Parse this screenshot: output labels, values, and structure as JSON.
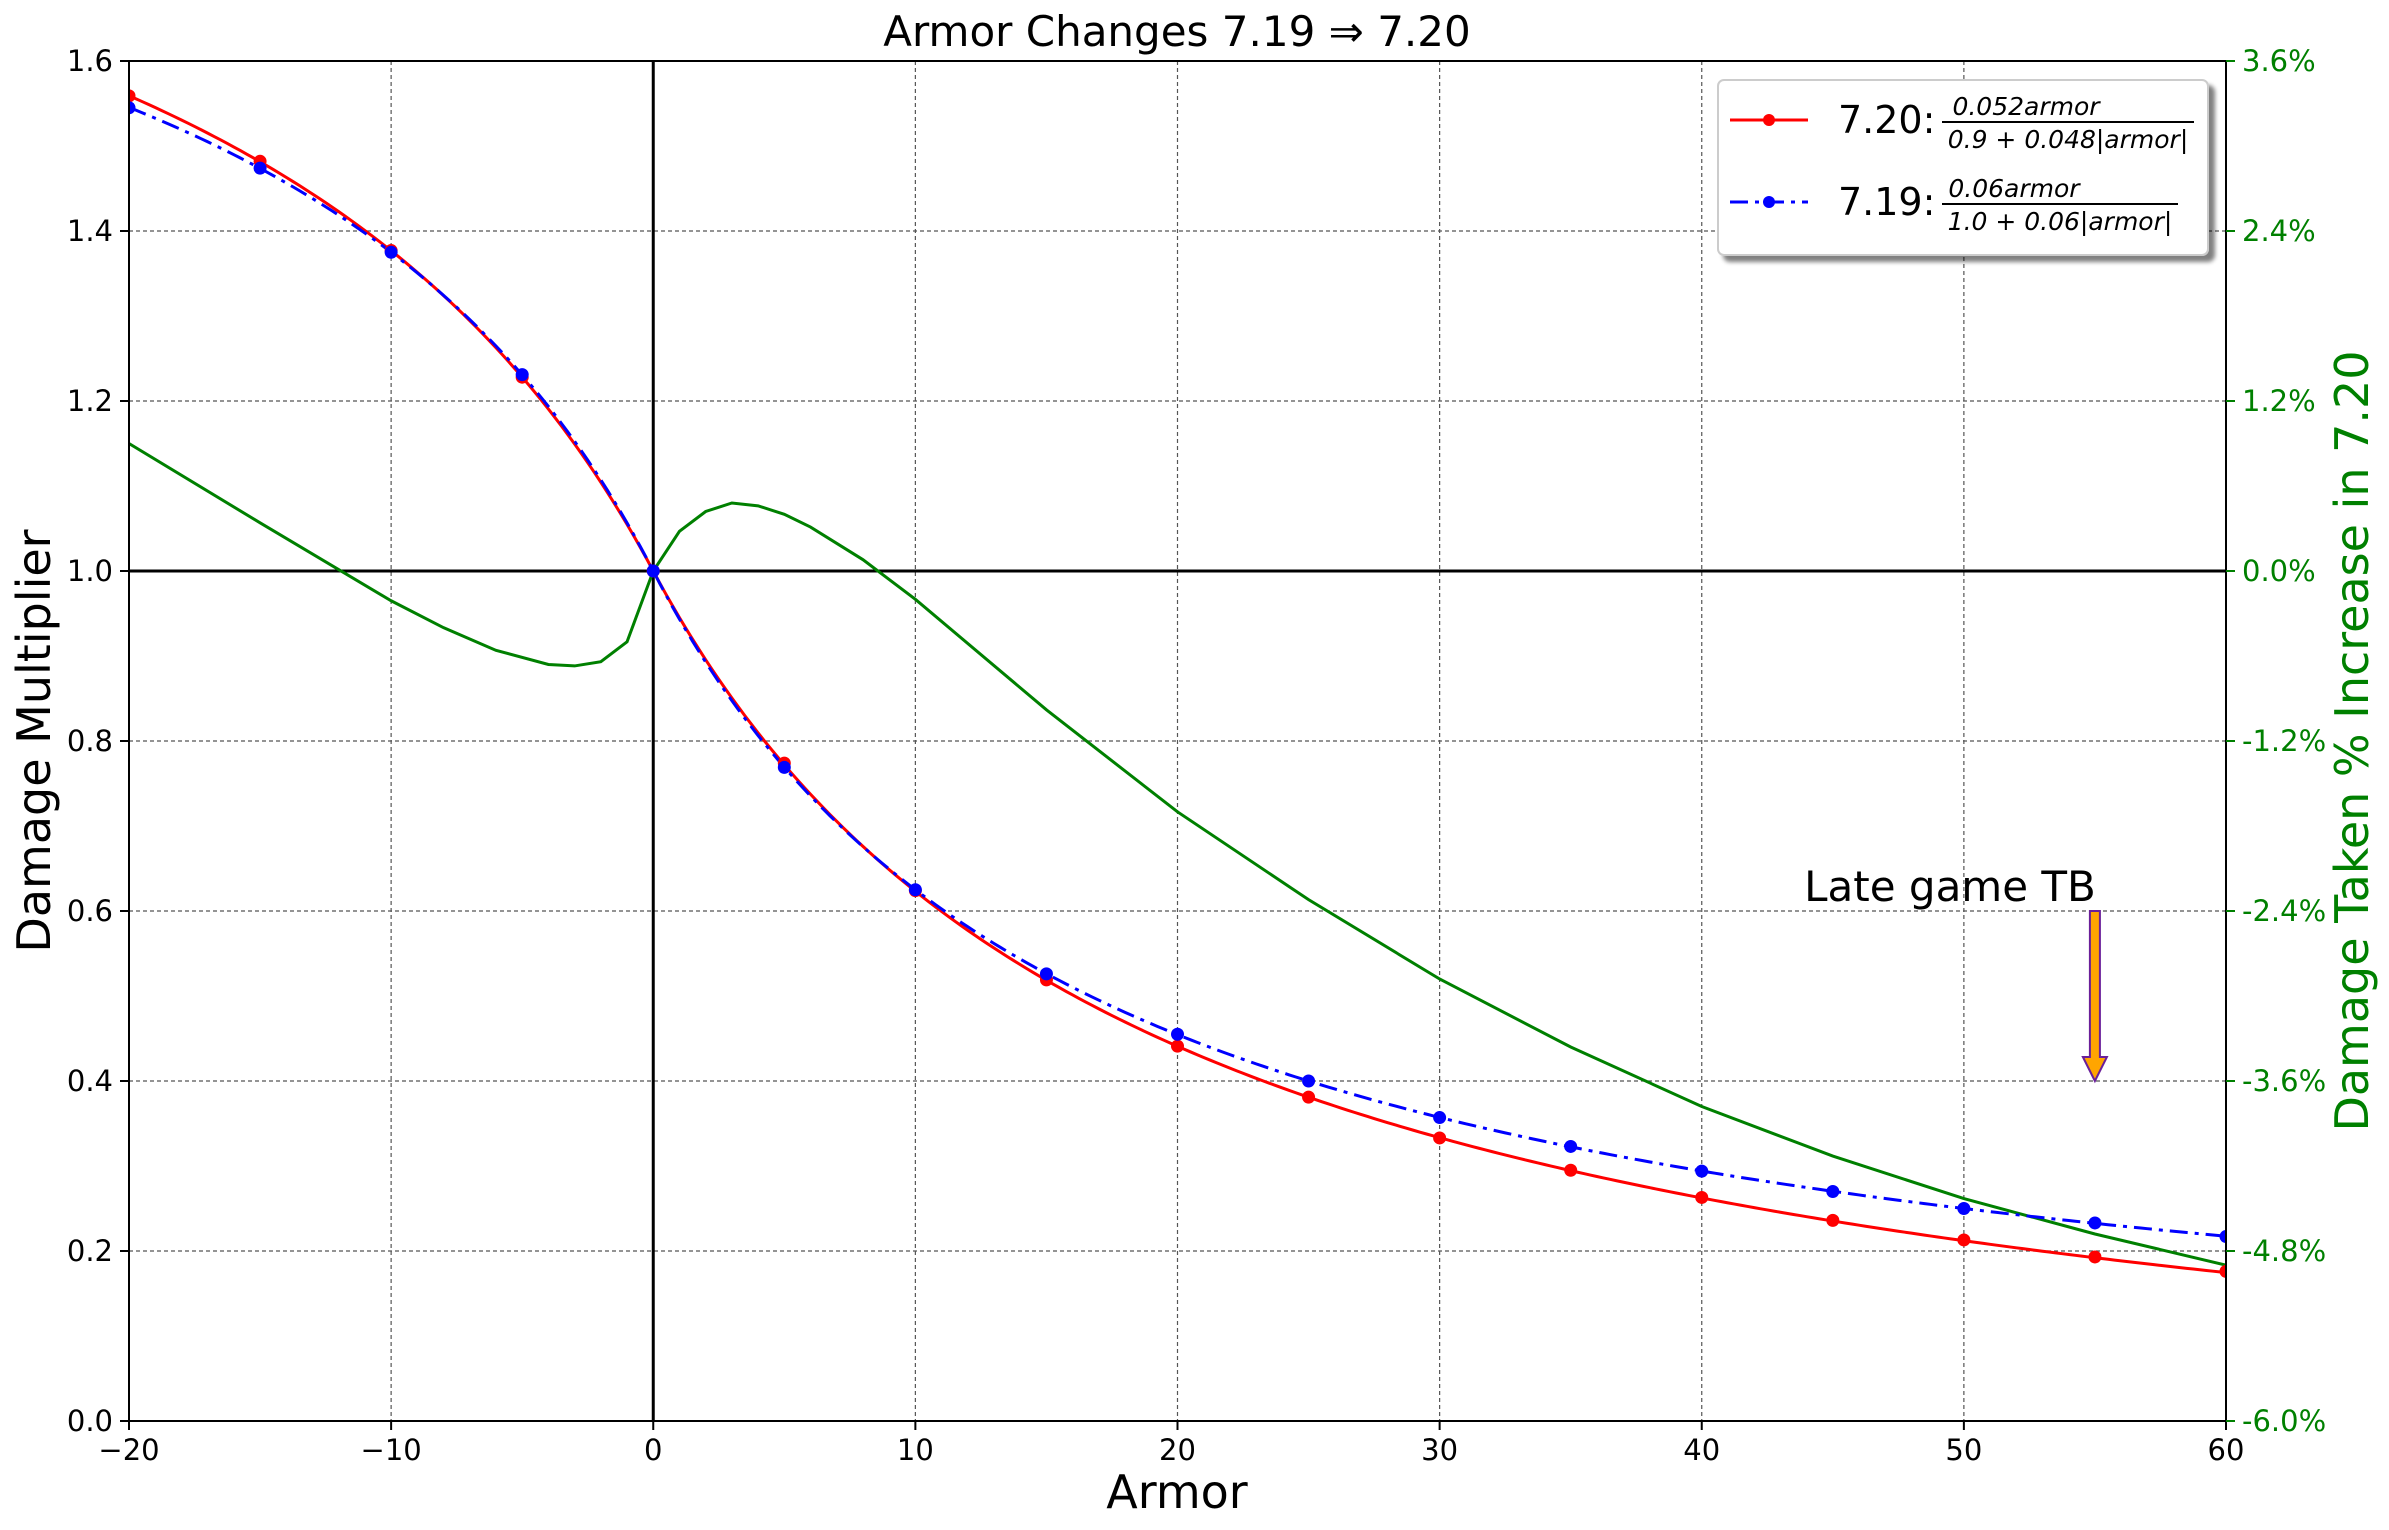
{
  "chart_data": {
    "type": "line",
    "title": "Armor Changes 7.19 ⇒ 7.20",
    "xlabel": "Armor",
    "ylabel": "Damage Multiplier",
    "ylabel_right": "Damage Taken % Increase in 7.20",
    "xlim": [
      -20,
      60
    ],
    "ylim": [
      0.0,
      1.6
    ],
    "ylim_right": [
      -6.0,
      3.6
    ],
    "x_ticks": [
      -20,
      -10,
      0,
      10,
      20,
      30,
      40,
      50,
      60
    ],
    "x_tick_labels": [
      "−20",
      "−10",
      "0",
      "10",
      "20",
      "30",
      "40",
      "50",
      "60"
    ],
    "y_ticks": [
      0.0,
      0.2,
      0.4,
      0.6,
      0.8,
      1.0,
      1.2,
      1.4,
      1.6
    ],
    "y_tick_labels": [
      "0.0",
      "0.2",
      "0.4",
      "0.6",
      "0.8",
      "1.0",
      "1.2",
      "1.4",
      "1.6"
    ],
    "y2_ticks": [
      -6.0,
      -4.8,
      -3.6,
      -2.4,
      -1.2,
      0.0,
      1.2,
      2.4,
      3.6
    ],
    "y2_tick_labels": [
      "-6.0%",
      "-4.8%",
      "-3.6%",
      "-2.4%",
      "-1.2%",
      "0.0%",
      "1.2%",
      "2.4%",
      "3.6%"
    ],
    "grid": true,
    "legend_position": "top-right",
    "series": [
      {
        "name": "7.20",
        "formula_numerator": "0.052armor",
        "formula_denominator": "0.9 + 0.048|armor|",
        "color": "#ff0000",
        "style": "solid",
        "marker_x": [
          -20,
          -15,
          -10,
          -5,
          0,
          5,
          10,
          15,
          20,
          25,
          30,
          35,
          40,
          45,
          50,
          55,
          60
        ],
        "marker_y": [
          1.559,
          1.482,
          1.377,
          1.228,
          1.0,
          0.774,
          0.624,
          0.519,
          0.441,
          0.381,
          0.333,
          0.295,
          0.263,
          0.236,
          0.213,
          0.193,
          0.176
        ]
      },
      {
        "name": "7.19",
        "formula_numerator": "0.06armor",
        "formula_denominator": "1.0 + 0.06|armor|",
        "color": "#0000ff",
        "style": "dashdot",
        "marker_x": [
          -20,
          -15,
          -10,
          -5,
          0,
          5,
          10,
          15,
          20,
          25,
          30,
          35,
          40,
          45,
          50,
          55,
          60
        ],
        "marker_y": [
          1.545,
          1.474,
          1.375,
          1.231,
          1.0,
          0.769,
          0.625,
          0.526,
          0.455,
          0.4,
          0.357,
          0.323,
          0.294,
          0.27,
          0.25,
          0.233,
          0.217
        ]
      },
      {
        "name": "Damage Taken % Increase in 7.20",
        "axis": "right",
        "color": "#008000",
        "style": "solid",
        "x": [
          -20,
          -15,
          -10,
          -8,
          -6,
          -4,
          -3,
          -2,
          -1,
          0,
          1,
          2,
          3,
          4,
          5,
          6,
          8,
          10,
          15,
          20,
          25,
          30,
          35,
          40,
          45,
          50,
          55,
          60
        ],
        "y": [
          0.9,
          0.34,
          -0.21,
          -0.4,
          -0.56,
          -0.66,
          -0.67,
          -0.64,
          -0.5,
          0.0,
          0.28,
          0.42,
          0.48,
          0.46,
          0.4,
          0.31,
          0.08,
          -0.2,
          -0.98,
          -1.7,
          -2.32,
          -2.88,
          -3.36,
          -3.78,
          -4.13,
          -4.43,
          -4.68,
          -4.9
        ]
      }
    ],
    "annotation": {
      "text": "Late game TB",
      "arrow_x": 55,
      "arrow_from_y": 0.6,
      "arrow_to_y": 0.4,
      "arrow_color": "#ffa500"
    }
  }
}
